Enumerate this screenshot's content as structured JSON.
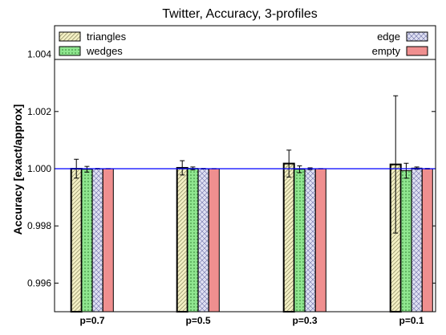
{
  "chart_data": {
    "type": "bar",
    "title": "Twitter, Accuracy, 3-profiles",
    "xlabel": "",
    "ylabel": "Accuracy [exact/approx]",
    "categories": [
      "p=0.7",
      "p=0.5",
      "p=0.3",
      "p=0.1"
    ],
    "ylim": [
      0.995,
      1.005
    ],
    "yticks": [
      "0.996",
      "0.998",
      "1.000",
      "1.002",
      "1.004"
    ],
    "reference_line": 1.0,
    "grid": false,
    "legend": "top",
    "series": [
      {
        "name": "triangles",
        "color": "#f3f0c4",
        "pattern": "diagonal-hatch",
        "values": [
          1.0,
          1.00003,
          1.00018,
          1.00015
        ],
        "errors": [
          0.00033,
          0.00025,
          0.00047,
          0.0024
        ]
      },
      {
        "name": "wedges",
        "color": "#8fe68f",
        "pattern": "dots",
        "values": [
          0.99998,
          1.00001,
          0.99998,
          0.99993
        ],
        "errors": [
          0.0001,
          5e-05,
          0.00012,
          0.00026
        ]
      },
      {
        "name": "edge",
        "color": "#dfe0f2",
        "pattern": "crosshatch",
        "values": [
          1.0,
          1.0,
          1.0,
          1.00002
        ],
        "errors": [
          1e-05,
          1e-05,
          3e-05,
          4e-05
        ]
      },
      {
        "name": "empty",
        "color": "#ef8f8f",
        "pattern": "solid",
        "values": [
          1.0,
          1.0,
          1.0,
          1.0
        ],
        "errors": [
          5e-06,
          5e-06,
          5e-06,
          1e-05
        ]
      }
    ]
  }
}
